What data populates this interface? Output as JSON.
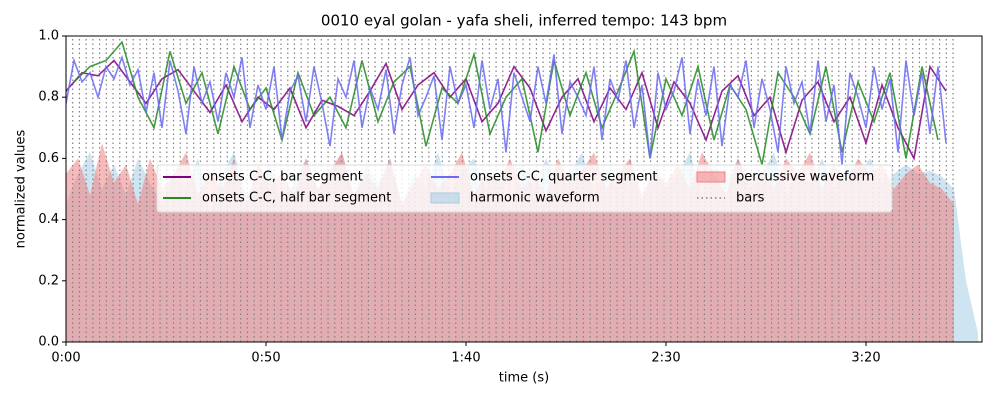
{
  "chart_data": {
    "type": "line",
    "title": "0010 eyal golan - yafa sheli, inferred tempo: 143 bpm",
    "xlabel": "time (s)",
    "ylabel": "normalized values",
    "xlim": [
      0,
      229
    ],
    "ylim": [
      0,
      1
    ],
    "xticks": [
      {
        "value": 0,
        "label": "0:00"
      },
      {
        "value": 50,
        "label": "0:50"
      },
      {
        "value": 100,
        "label": "1:40"
      },
      {
        "value": 150,
        "label": "2:30"
      },
      {
        "value": 200,
        "label": "3:20"
      }
    ],
    "yticks": [
      {
        "value": 0,
        "label": "0.0"
      },
      0.2,
      0.4,
      0.6,
      0.8,
      {
        "value": 1,
        "label": "1.0"
      }
    ],
    "legend": "center",
    "series": [
      {
        "name": "onsets C-C, bar segment",
        "type": "line",
        "color": "#800080",
        "x": [
          0,
          4,
          8,
          12,
          16,
          20,
          24,
          28,
          32,
          36,
          40,
          44,
          48,
          52,
          56,
          60,
          64,
          68,
          72,
          76,
          80,
          84,
          88,
          92,
          96,
          100,
          104,
          108,
          112,
          116,
          120,
          124,
          128,
          132,
          136,
          140,
          144,
          148,
          152,
          156,
          160,
          164,
          168,
          172,
          176,
          180,
          184,
          188,
          192,
          196,
          200,
          204,
          208,
          212,
          216,
          220
        ],
        "values": [
          0.82,
          0.88,
          0.87,
          0.92,
          0.85,
          0.78,
          0.86,
          0.89,
          0.82,
          0.75,
          0.84,
          0.72,
          0.8,
          0.76,
          0.83,
          0.7,
          0.79,
          0.77,
          0.74,
          0.82,
          0.91,
          0.76,
          0.84,
          0.88,
          0.8,
          0.86,
          0.72,
          0.78,
          0.9,
          0.83,
          0.69,
          0.8,
          0.86,
          0.72,
          0.83,
          0.76,
          0.88,
          0.7,
          0.85,
          0.78,
          0.66,
          0.82,
          0.87,
          0.74,
          0.8,
          0.62,
          0.79,
          0.85,
          0.72,
          0.8,
          0.65,
          0.84,
          0.7,
          0.6,
          0.9,
          0.82
        ]
      },
      {
        "name": "onsets C-C, half bar segment",
        "type": "line",
        "color": "#228b22",
        "x": [
          2,
          6,
          10,
          14,
          18,
          22,
          26,
          30,
          34,
          38,
          42,
          46,
          50,
          54,
          58,
          62,
          66,
          70,
          74,
          78,
          82,
          86,
          90,
          94,
          98,
          102,
          106,
          110,
          114,
          118,
          122,
          126,
          130,
          134,
          138,
          142,
          146,
          150,
          154,
          158,
          162,
          166,
          170,
          174,
          178,
          182,
          186,
          190,
          194,
          198,
          202,
          206,
          210,
          214,
          218
        ],
        "values": [
          0.85,
          0.9,
          0.92,
          0.98,
          0.8,
          0.7,
          0.95,
          0.78,
          0.88,
          0.68,
          0.9,
          0.76,
          0.83,
          0.66,
          0.88,
          0.74,
          0.8,
          0.7,
          0.92,
          0.72,
          0.85,
          0.9,
          0.64,
          0.83,
          0.78,
          0.94,
          0.68,
          0.8,
          0.86,
          0.62,
          0.92,
          0.74,
          0.88,
          0.7,
          0.82,
          0.95,
          0.6,
          0.86,
          0.74,
          0.9,
          0.66,
          0.84,
          0.76,
          0.58,
          0.88,
          0.8,
          0.68,
          0.9,
          0.62,
          0.85,
          0.72,
          0.88,
          0.6,
          0.9,
          0.66
        ]
      },
      {
        "name": "onsets C-C, quarter segment",
        "type": "line",
        "color": "#6a6af5",
        "x": [
          0,
          2,
          4,
          6,
          8,
          10,
          12,
          14,
          16,
          18,
          20,
          22,
          24,
          26,
          28,
          30,
          32,
          34,
          36,
          38,
          40,
          42,
          44,
          46,
          48,
          50,
          52,
          54,
          56,
          58,
          60,
          62,
          64,
          66,
          68,
          70,
          72,
          74,
          76,
          78,
          80,
          82,
          84,
          86,
          88,
          90,
          92,
          94,
          96,
          98,
          100,
          102,
          104,
          106,
          108,
          110,
          112,
          114,
          116,
          118,
          120,
          122,
          124,
          126,
          128,
          130,
          132,
          134,
          136,
          138,
          140,
          142,
          144,
          146,
          148,
          150,
          152,
          154,
          156,
          158,
          160,
          162,
          164,
          166,
          168,
          170,
          172,
          174,
          176,
          178,
          180,
          182,
          184,
          186,
          188,
          190,
          192,
          194,
          196,
          198,
          200,
          202,
          204,
          206,
          208,
          210,
          212,
          214,
          216,
          218,
          220
        ],
        "values": [
          0.78,
          0.92,
          0.85,
          0.88,
          0.8,
          0.9,
          0.86,
          0.93,
          0.84,
          0.89,
          0.75,
          0.88,
          0.7,
          0.92,
          0.82,
          0.68,
          0.9,
          0.78,
          0.85,
          0.72,
          0.88,
          0.8,
          0.93,
          0.7,
          0.84,
          0.76,
          0.9,
          0.66,
          0.82,
          0.87,
          0.72,
          0.9,
          0.78,
          0.64,
          0.86,
          0.8,
          0.92,
          0.7,
          0.83,
          0.76,
          0.89,
          0.68,
          0.84,
          0.93,
          0.74,
          0.8,
          0.87,
          0.66,
          0.9,
          0.78,
          0.84,
          0.7,
          0.92,
          0.76,
          0.86,
          0.62,
          0.88,
          0.8,
          0.72,
          0.9,
          0.78,
          0.94,
          0.68,
          0.85,
          0.8,
          0.74,
          0.9,
          0.66,
          0.86,
          0.79,
          0.92,
          0.7,
          0.84,
          0.6,
          0.88,
          0.76,
          0.82,
          0.93,
          0.68,
          0.86,
          0.74,
          0.9,
          0.64,
          0.84,
          0.8,
          0.92,
          0.7,
          0.86,
          0.76,
          0.62,
          0.9,
          0.78,
          0.85,
          0.68,
          0.92,
          0.72,
          0.84,
          0.58,
          0.88,
          0.8,
          0.7,
          0.9,
          0.76,
          0.86,
          0.62,
          0.92,
          0.74,
          0.88,
          0.68,
          0.9,
          0.65
        ]
      },
      {
        "name": "harmonic waveform",
        "type": "area",
        "color": "#a6cde3",
        "x": [
          0,
          3,
          6,
          9,
          12,
          15,
          18,
          21,
          24,
          27,
          30,
          33,
          36,
          39,
          42,
          45,
          48,
          51,
          54,
          57,
          60,
          63,
          66,
          69,
          72,
          75,
          78,
          81,
          84,
          87,
          90,
          93,
          96,
          99,
          102,
          105,
          108,
          111,
          114,
          117,
          120,
          123,
          126,
          129,
          132,
          135,
          138,
          141,
          144,
          147,
          150,
          153,
          156,
          159,
          162,
          165,
          168,
          171,
          174,
          177,
          180,
          183,
          186,
          189,
          192,
          195,
          198,
          201,
          204,
          207,
          210,
          213,
          216,
          219,
          222,
          225,
          228
        ],
        "values": [
          0.45,
          0.55,
          0.62,
          0.5,
          0.58,
          0.48,
          0.6,
          0.52,
          0.45,
          0.55,
          0.5,
          0.6,
          0.42,
          0.55,
          0.62,
          0.48,
          0.5,
          0.58,
          0.45,
          0.52,
          0.6,
          0.5,
          0.55,
          0.62,
          0.48,
          0.58,
          0.52,
          0.6,
          0.45,
          0.55,
          0.5,
          0.62,
          0.48,
          0.56,
          0.6,
          0.5,
          0.55,
          0.42,
          0.58,
          0.5,
          0.6,
          0.52,
          0.55,
          0.62,
          0.48,
          0.56,
          0.5,
          0.6,
          0.45,
          0.58,
          0.5,
          0.55,
          0.62,
          0.48,
          0.58,
          0.52,
          0.6,
          0.5,
          0.55,
          0.62,
          0.48,
          0.56,
          0.52,
          0.6,
          0.5,
          0.58,
          0.55,
          0.6,
          0.52,
          0.55,
          0.58,
          0.55,
          0.56,
          0.54,
          0.5,
          0.2,
          0.03
        ]
      },
      {
        "name": "percussive waveform",
        "type": "area",
        "color": "#f08080",
        "x": [
          0,
          3,
          6,
          9,
          12,
          15,
          18,
          21,
          24,
          27,
          30,
          33,
          36,
          39,
          42,
          45,
          48,
          51,
          54,
          57,
          60,
          63,
          66,
          69,
          72,
          75,
          78,
          81,
          84,
          87,
          90,
          93,
          96,
          99,
          102,
          105,
          108,
          111,
          114,
          117,
          120,
          123,
          126,
          129,
          132,
          135,
          138,
          141,
          144,
          147,
          150,
          153,
          156,
          159,
          162,
          165,
          168,
          171,
          174,
          177,
          180,
          183,
          186,
          189,
          192,
          195,
          198,
          201,
          204,
          207,
          210,
          213,
          216,
          219,
          222
        ],
        "values": [
          0.55,
          0.6,
          0.48,
          0.65,
          0.52,
          0.58,
          0.45,
          0.6,
          0.5,
          0.55,
          0.62,
          0.48,
          0.56,
          0.5,
          0.6,
          0.45,
          0.58,
          0.52,
          0.55,
          0.48,
          0.6,
          0.5,
          0.56,
          0.62,
          0.48,
          0.55,
          0.5,
          0.6,
          0.45,
          0.52,
          0.58,
          0.5,
          0.55,
          0.62,
          0.48,
          0.56,
          0.52,
          0.6,
          0.5,
          0.55,
          0.48,
          0.6,
          0.52,
          0.56,
          0.62,
          0.5,
          0.55,
          0.6,
          0.48,
          0.56,
          0.52,
          0.58,
          0.5,
          0.62,
          0.55,
          0.48,
          0.6,
          0.52,
          0.56,
          0.5,
          0.6,
          0.55,
          0.62,
          0.5,
          0.58,
          0.52,
          0.6,
          0.55,
          0.58,
          0.5,
          0.55,
          0.58,
          0.52,
          0.5,
          0.45
        ]
      },
      {
        "name": "bars",
        "type": "vlines",
        "color": "#808080",
        "x": [
          0,
          1.68,
          3.36,
          5.04,
          6.72,
          8.4,
          10.08,
          11.76,
          13.44,
          15.12,
          16.8,
          18.48,
          20.16,
          21.84,
          23.52,
          25.2,
          26.88,
          28.56,
          30.24,
          31.92,
          33.6,
          35.28,
          36.96,
          38.64,
          40.32,
          42,
          43.68,
          45.36,
          47.04,
          48.72,
          50.4,
          52.08,
          53.76,
          55.44,
          57.12,
          58.8,
          60.48,
          62.16,
          63.84,
          65.52,
          67.2,
          68.88,
          70.56,
          72.24,
          73.92,
          75.6,
          77.28,
          78.96,
          80.64,
          82.32,
          84,
          85.68,
          87.36,
          89.04,
          90.72,
          92.4,
          94.08,
          95.76,
          97.44,
          99.12,
          100.8,
          102.48,
          104.16,
          105.84,
          107.52,
          109.2,
          110.88,
          112.56,
          114.24,
          115.92,
          117.6,
          119.28,
          120.96,
          122.64,
          124.32,
          126,
          127.68,
          129.36,
          131.04,
          132.72,
          134.4,
          136.08,
          137.76,
          139.44,
          141.12,
          142.8,
          144.48,
          146.16,
          147.84,
          149.52,
          151.2,
          152.88,
          154.56,
          156.24,
          157.92,
          159.6,
          161.28,
          162.96,
          164.64,
          166.32,
          168,
          169.68,
          171.36,
          173.04,
          174.72,
          176.4,
          178.08,
          179.76,
          181.44,
          183.12,
          184.8,
          186.48,
          188.16,
          189.84,
          191.52,
          193.2,
          194.88,
          196.56,
          198.24,
          199.92,
          201.6,
          203.28,
          204.96,
          206.64,
          208.32,
          210,
          211.68,
          213.36,
          215.04,
          216.72,
          218.4,
          220.08,
          221.76
        ]
      }
    ]
  }
}
